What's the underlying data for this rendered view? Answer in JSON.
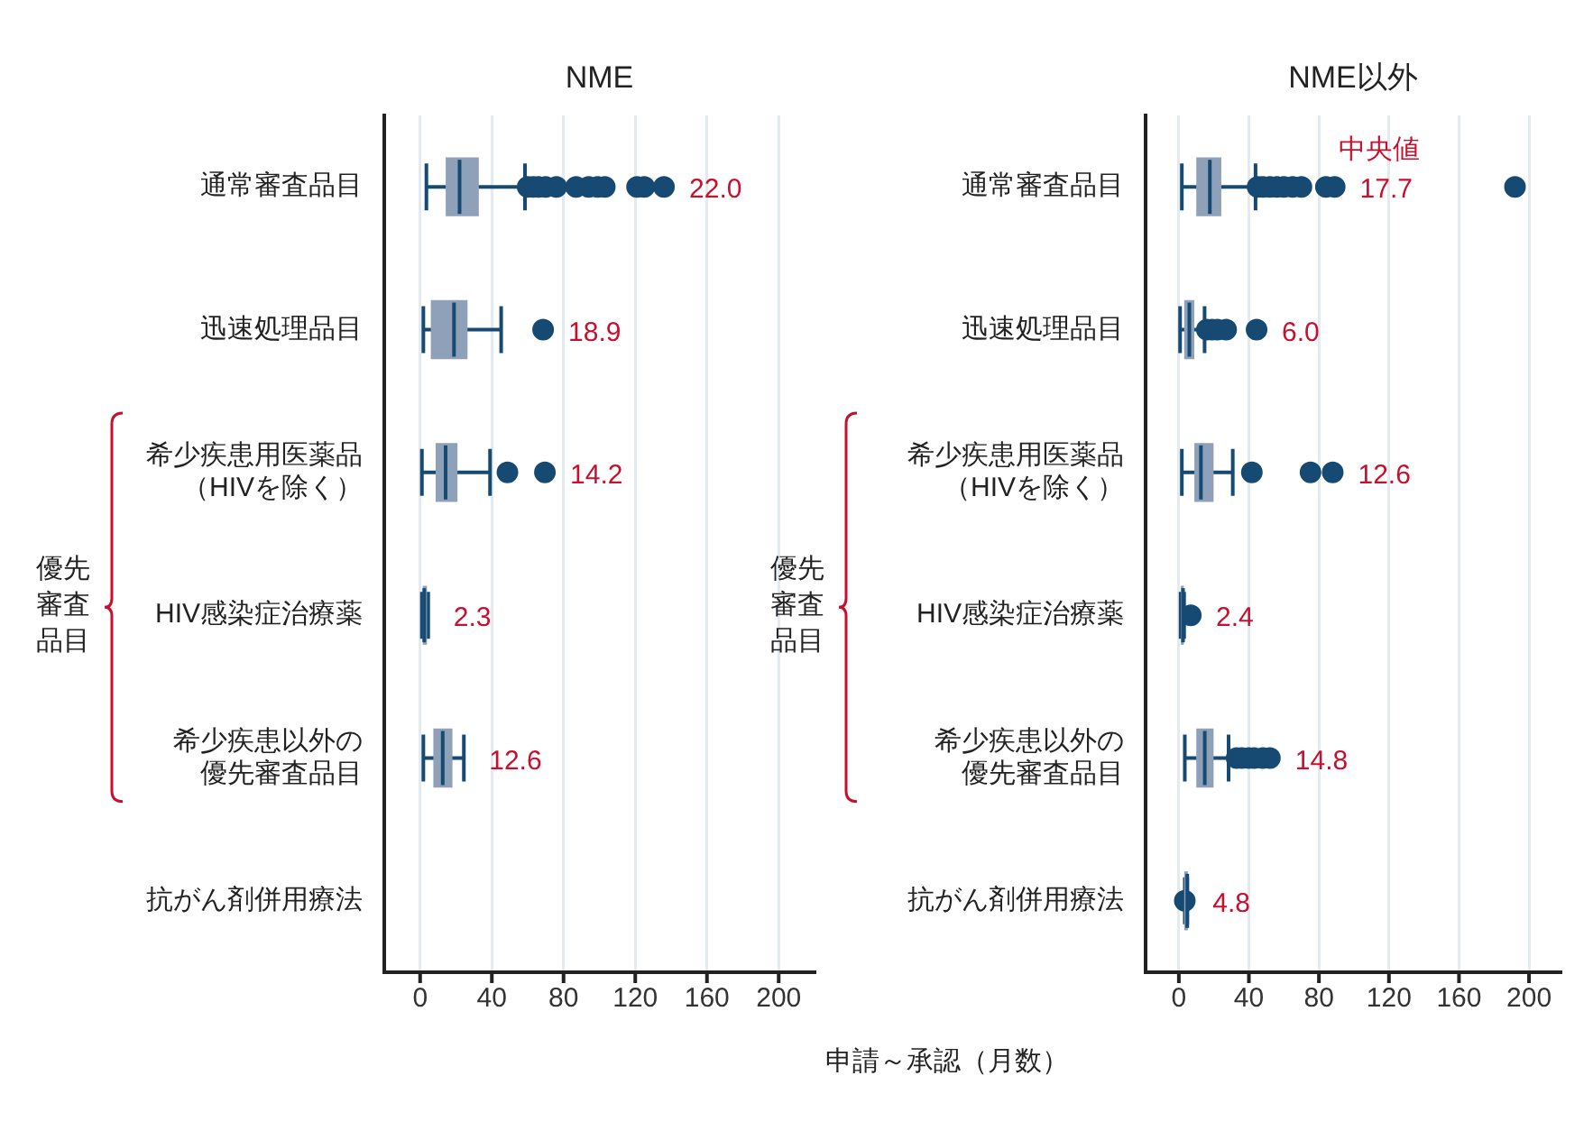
{
  "chart_data": [
    {
      "type": "box",
      "orientation": "horizontal",
      "title": "NME",
      "xlabel": "申請～承認（月数）",
      "categories": [
        "通常審査品目",
        "迅速処理品目",
        "希少疾患用医薬品（HIVを除く）",
        "HIV感染症治療薬",
        "希少疾患以外の優先審査品目",
        "抗がん剤併用療法"
      ],
      "series": [
        {
          "color": "#8fa1b9",
          "boxes": [
            {
              "low": 3.5,
              "q1": 14.6,
              "median": 22.0,
              "q3": 32.4,
              "high": 58.5,
              "outliers": [
                60,
                63,
                66,
                70,
                76,
                87,
                94,
                99,
                103,
                121,
                125,
                136
              ]
            },
            {
              "low": 1.8,
              "q1": 6.3,
              "median": 18.9,
              "q3": 26.1,
              "high": 45.2,
              "outliers": [
                68.6
              ]
            },
            {
              "low": 1,
              "q1": 9,
              "median": 14.2,
              "q3": 20.5,
              "high": 39,
              "outliers": [
                48.7,
                69.6
              ]
            },
            {
              "low": 1,
              "q1": 1.8,
              "median": 2.3,
              "q3": 3.5,
              "high": 4.5
            },
            {
              "low": 1.8,
              "q1": 7.7,
              "median": 12.6,
              "q3": 17.7,
              "high": 24.4
            },
            null
          ]
        }
      ],
      "xlim": [
        -20,
        220
      ],
      "xticks": [
        0,
        40,
        80,
        120,
        160,
        200
      ],
      "grid": "x",
      "annotations": [
        "優先審査品目",
        "22.0",
        "18.9",
        "14.2",
        "2.3",
        "12.6"
      ]
    },
    {
      "type": "box",
      "orientation": "horizontal",
      "title": "NME以外",
      "categories": [
        "通常審査品目",
        "迅速処理品目",
        "希少疾患用医薬品（HIVを除く）",
        "HIV感染症治療薬",
        "希少疾患以外の優先審査品目",
        "抗がん剤併用療法"
      ],
      "series": [
        {
          "color": "#8fa1b9",
          "boxes": [
            {
              "low": 1.7,
              "q1": 10.3,
              "median": 17.7,
              "q3": 23.9,
              "high": 43.8,
              "outliers": [
                45,
                48,
                52,
                56,
                60,
                65,
                70,
                84,
                89,
                192
              ]
            },
            {
              "low": 0.7,
              "q1": 3.4,
              "median": 6.0,
              "q3": 8.5,
              "high": 14.7,
              "outliers": [
                16,
                19,
                22,
                27,
                44.4
              ]
            },
            {
              "low": 1.7,
              "q1": 9.2,
              "median": 12.6,
              "q3": 19.5,
              "high": 30.8,
              "outliers": [
                41.7,
                75.2,
                87.9
              ]
            },
            {
              "low": 1,
              "q1": 1.5,
              "median": 2.4,
              "q3": 2.5,
              "high": 3,
              "outliers": [
                6.8
              ]
            },
            {
              "low": 3.4,
              "q1": 10.3,
              "median": 14.8,
              "q3": 19.5,
              "high": 28.4,
              "outliers": [
                33,
                36,
                40,
                43,
                48,
                52
              ]
            },
            {
              "low": 3.4,
              "q1": 3.4,
              "median": 4.8,
              "q3": 4.8,
              "high": 4.8,
              "outliers": [
                3.4
              ]
            }
          ]
        }
      ],
      "xlim": [
        -19,
        218
      ],
      "xticks": [
        0,
        40,
        80,
        120,
        160,
        200
      ],
      "grid": "x",
      "annotations": [
        "優先審査品目",
        "中央値",
        "17.7",
        "6.0",
        "12.6",
        "2.4",
        "14.8",
        "4.8"
      ]
    }
  ]
}
